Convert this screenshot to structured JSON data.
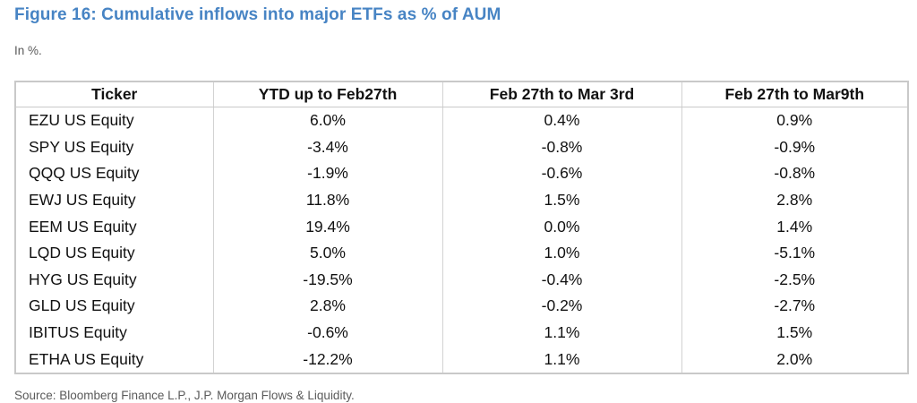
{
  "figure": {
    "title": "Figure 16: Cumulative inflows into major ETFs as % of AUM",
    "subtitle": "In %.",
    "source": "Source: Bloomberg Finance L.P., J.P. Morgan Flows & Liquidity."
  },
  "colors": {
    "title_blue": "#4784c4",
    "border_gray": "#c9c9c9",
    "muted_text": "#5a5a5a",
    "body_text": "#111111"
  },
  "chart_data": {
    "type": "table",
    "title": "Cumulative inflows into major ETFs as % of AUM",
    "unit": "percent of AUM",
    "columns": [
      "Ticker",
      "YTD up to Feb27th",
      "Feb 27th to Mar 3rd",
      "Feb 27th to Mar9th"
    ],
    "rows": [
      [
        "EZU US Equity",
        "6.0%",
        "0.4%",
        "0.9%"
      ],
      [
        "SPY US Equity",
        "-3.4%",
        "-0.8%",
        "-0.9%"
      ],
      [
        "QQQ US Equity",
        "-1.9%",
        "-0.6%",
        "-0.8%"
      ],
      [
        "EWJ US Equity",
        "11.8%",
        "1.5%",
        "2.8%"
      ],
      [
        "EEM US Equity",
        "19.4%",
        "0.0%",
        "1.4%"
      ],
      [
        "LQD US Equity",
        "5.0%",
        "1.0%",
        "-5.1%"
      ],
      [
        "HYG US Equity",
        "-19.5%",
        "-0.4%",
        "-2.5%"
      ],
      [
        "GLD US Equity",
        "2.8%",
        "-0.2%",
        "-2.7%"
      ],
      [
        "IBITUS Equity",
        "-0.6%",
        "1.1%",
        "1.5%"
      ],
      [
        "ETHA US Equity",
        "-12.2%",
        "1.1%",
        "2.0%"
      ]
    ],
    "rows_numeric": [
      {
        "ticker": "EZU US Equity",
        "ytd_to_feb27": 6.0,
        "feb27_to_mar3": 0.4,
        "feb27_to_mar9": 0.9
      },
      {
        "ticker": "SPY US Equity",
        "ytd_to_feb27": -3.4,
        "feb27_to_mar3": -0.8,
        "feb27_to_mar9": -0.9
      },
      {
        "ticker": "QQQ US Equity",
        "ytd_to_feb27": -1.9,
        "feb27_to_mar3": -0.6,
        "feb27_to_mar9": -0.8
      },
      {
        "ticker": "EWJ US Equity",
        "ytd_to_feb27": 11.8,
        "feb27_to_mar3": 1.5,
        "feb27_to_mar9": 2.8
      },
      {
        "ticker": "EEM US Equity",
        "ytd_to_feb27": 19.4,
        "feb27_to_mar3": 0.0,
        "feb27_to_mar9": 1.4
      },
      {
        "ticker": "LQD US Equity",
        "ytd_to_feb27": 5.0,
        "feb27_to_mar3": 1.0,
        "feb27_to_mar9": -5.1
      },
      {
        "ticker": "HYG US Equity",
        "ytd_to_feb27": -19.5,
        "feb27_to_mar3": -0.4,
        "feb27_to_mar9": -2.5
      },
      {
        "ticker": "GLD US Equity",
        "ytd_to_feb27": 2.8,
        "feb27_to_mar3": -0.2,
        "feb27_to_mar9": -2.7
      },
      {
        "ticker": "IBITUS Equity",
        "ytd_to_feb27": -0.6,
        "feb27_to_mar3": 1.1,
        "feb27_to_mar9": 1.5
      },
      {
        "ticker": "ETHA US Equity",
        "ytd_to_feb27": -12.2,
        "feb27_to_mar3": 1.1,
        "feb27_to_mar9": 2.0
      }
    ]
  }
}
